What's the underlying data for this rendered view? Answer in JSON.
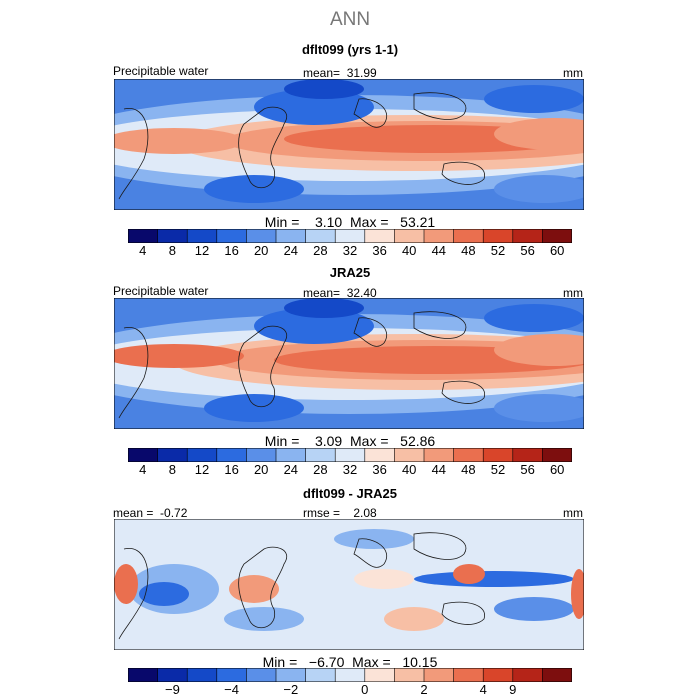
{
  "figure_title": "ANN",
  "units": "mm",
  "panels": [
    {
      "title": "dflt099 (yrs 1-1)",
      "variable_label": "Precipitable water",
      "stat_text": "mean=  31.99",
      "min_max_text": "Min =    3.10  Max =   53.21",
      "colorbar_ticks": [
        "4",
        "8",
        "12",
        "16",
        "20",
        "24",
        "28",
        "32",
        "36",
        "40",
        "44",
        "48",
        "52",
        "56",
        "60"
      ]
    },
    {
      "title": "JRA25",
      "variable_label": "Precipitable water",
      "stat_text": "mean=  32.40",
      "min_max_text": "Min =    3.09  Max =   52.86",
      "colorbar_ticks": [
        "4",
        "8",
        "12",
        "16",
        "20",
        "24",
        "28",
        "32",
        "36",
        "40",
        "44",
        "48",
        "52",
        "56",
        "60"
      ]
    },
    {
      "title": "dflt099 - JRA25",
      "mean_text": "mean =  -0.72",
      "rmse_text": "rmse =    2.08",
      "min_max_text": "Min =   −6.70  Max =   10.15",
      "colorbar_ticks": [
        "−9",
        "−4",
        "−2",
        "0",
        "2",
        "4",
        "9"
      ]
    }
  ],
  "colors": {
    "abs_scale": [
      "#08086b",
      "#0a2aa8",
      "#1449c8",
      "#2c6be0",
      "#5a8fe8",
      "#8ab4f0",
      "#b7d3f5",
      "#dfeaf8",
      "#fbe3d7",
      "#f7bfa5",
      "#f29a7a",
      "#ea6f4f",
      "#d9452a",
      "#b52418",
      "#7d0e0e"
    ],
    "diff_scale": [
      "#08086b",
      "#0a2aa8",
      "#1449c8",
      "#2c6be0",
      "#5a8fe8",
      "#8ab4f0",
      "#b7d3f5",
      "#dfeaf8",
      "#fbe3d7",
      "#f7bfa5",
      "#f29a7a",
      "#ea6f4f",
      "#d9452a",
      "#b52418",
      "#7d0e0e"
    ],
    "coastline": "#1a1a1a"
  }
}
